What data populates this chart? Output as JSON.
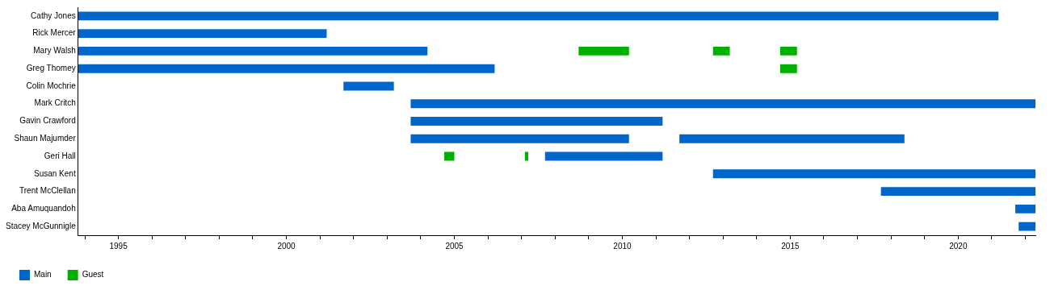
{
  "chart_data": {
    "type": "bar",
    "orientation": "horizontal",
    "categories": [
      "Cathy Jones",
      "Rick Mercer",
      "Mary Walsh",
      "Greg Thomey",
      "Colin Mochrie",
      "Mark Critch",
      "Gavin Crawford",
      "Shaun Majumder",
      "Geri Hall",
      "Susan Kent",
      "Trent McClellan",
      "Aba Amuquandoh",
      "Stacey McGunnigle"
    ],
    "series": [
      {
        "name": "Main",
        "color": "#0066cc",
        "base": [
          1993.8,
          1993.8,
          1993.8,
          1993.8,
          2001.7,
          2003.7,
          2003.7,
          2003.7,
          2007.7,
          2012.7,
          2017.7,
          2021.7,
          2021.8
        ],
        "values": [
          27.4,
          7.4,
          10.4,
          12.4,
          1.5,
          18.6,
          7.5,
          6.5,
          3.5,
          9.6,
          4.6,
          0.6,
          0.5
        ]
      },
      {
        "color": "#0066cc",
        "base": [
          null,
          null,
          null,
          null,
          null,
          null,
          null,
          2011.7,
          null,
          null,
          null,
          null,
          null
        ],
        "values": [
          null,
          null,
          null,
          null,
          null,
          null,
          null,
          6.7,
          null,
          null,
          null,
          null,
          null
        ]
      },
      {
        "name": "Guest",
        "color": "#00b000",
        "base": [
          null,
          null,
          2008.7,
          2014.7,
          null,
          null,
          null,
          null,
          2004.7,
          null,
          null,
          null,
          null
        ],
        "values": [
          null,
          null,
          1.5,
          0.5,
          null,
          null,
          null,
          null,
          0.3,
          null,
          null,
          null,
          null
        ]
      },
      {
        "color": "#00b000",
        "base": [
          null,
          null,
          2012.7,
          null,
          null,
          null,
          null,
          null,
          2007.1,
          null,
          null,
          null,
          null
        ],
        "values": [
          null,
          null,
          0.5,
          null,
          null,
          null,
          null,
          null,
          0.1,
          null,
          null,
          null,
          null
        ]
      },
      {
        "color": "#00b000",
        "base": [
          null,
          null,
          2014.7,
          null,
          null,
          null,
          null,
          null,
          null,
          null,
          null,
          null,
          null
        ],
        "values": [
          null,
          null,
          0.5,
          null,
          null,
          null,
          null,
          null,
          null,
          null,
          null,
          null,
          null
        ]
      }
    ],
    "xlim": [
      1993.8,
      2022.3
    ],
    "xticks": [
      {
        "value": 1994,
        "label": null
      },
      1995,
      {
        "value": 1996,
        "label": null
      },
      {
        "value": 1997,
        "label": null
      },
      {
        "value": 1998,
        "label": null
      },
      {
        "value": 1999,
        "label": null
      },
      2000,
      {
        "value": 2001,
        "label": null
      },
      {
        "value": 2002,
        "label": null
      },
      {
        "value": 2003,
        "label": null
      },
      {
        "value": 2004,
        "label": null
      },
      2005,
      {
        "value": 2006,
        "label": null
      },
      {
        "value": 2007,
        "label": null
      },
      {
        "value": 2008,
        "label": null
      },
      {
        "value": 2009,
        "label": null
      },
      2010,
      {
        "value": 2011,
        "label": null
      },
      {
        "value": 2012,
        "label": null
      },
      {
        "value": 2013,
        "label": null
      },
      {
        "value": 2014,
        "label": null
      },
      2015,
      {
        "value": 2016,
        "label": null
      },
      {
        "value": 2017,
        "label": null
      },
      {
        "value": 2018,
        "label": null
      },
      {
        "value": 2019,
        "label": null
      },
      2020,
      {
        "value": 2021,
        "label": null
      },
      {
        "value": 2022,
        "label": null
      }
    ],
    "grid": false,
    "legend": "bottom left"
  }
}
